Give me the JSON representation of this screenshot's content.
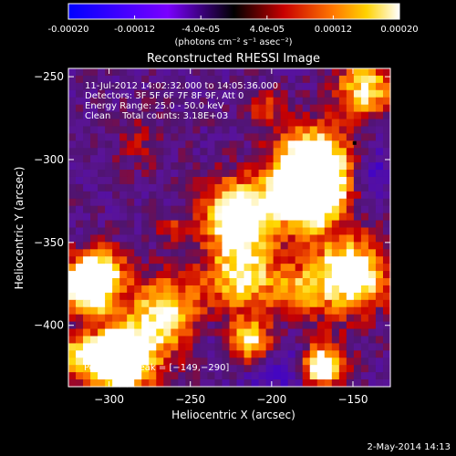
{
  "colorbar": {
    "ticks": [
      {
        "label": "-0.00020",
        "value": -0.0002
      },
      {
        "label": "-0.00012",
        "value": -0.00012
      },
      {
        "label": "-4.0e-05",
        "value": -4e-05
      },
      {
        "label": "4.0e-05",
        "value": 4e-05
      },
      {
        "label": "0.00012",
        "value": 0.00012
      },
      {
        "label": "0.00020",
        "value": 0.0002
      }
    ],
    "range": [
      -0.0002,
      0.0002
    ],
    "unit_label": "(photons cm⁻² s⁻¹ asec⁻²)"
  },
  "chart_data": {
    "type": "heatmap",
    "title": "Reconstructed RHESSI Image",
    "xlabel": "Heliocentric X (arcsec)",
    "ylabel": "Heliocentric Y (arcsec)",
    "xlim": [
      -325,
      -127
    ],
    "ylim": [
      -437,
      -245
    ],
    "x_ticks": [
      {
        "label": "−300",
        "value": -300
      },
      {
        "label": "−250",
        "value": -250
      },
      {
        "label": "−200",
        "value": -200
      },
      {
        "label": "−150",
        "value": -150
      }
    ],
    "y_ticks": [
      {
        "label": "−250",
        "value": -250
      },
      {
        "label": "−300",
        "value": -300
      },
      {
        "label": "−350",
        "value": -350
      },
      {
        "label": "−400",
        "value": -400
      }
    ],
    "annotations": [
      "11-Jul-2012 14:02:32.000 to 14:05:36.000",
      "Detectors: 3F 5F 6F 7F 8F 9F, Att 0",
      "Energy Range: 25.0 - 50.0 keV",
      "Clean    Total counts: 3.18E+03"
    ],
    "peak_label": "Position of Peak = [−149,−290]",
    "peak": {
      "x": -149,
      "y": -290
    },
    "color_scale": "red-temperature",
    "grid": false
  },
  "footer": {
    "date": "2-May-2014 14:13"
  }
}
